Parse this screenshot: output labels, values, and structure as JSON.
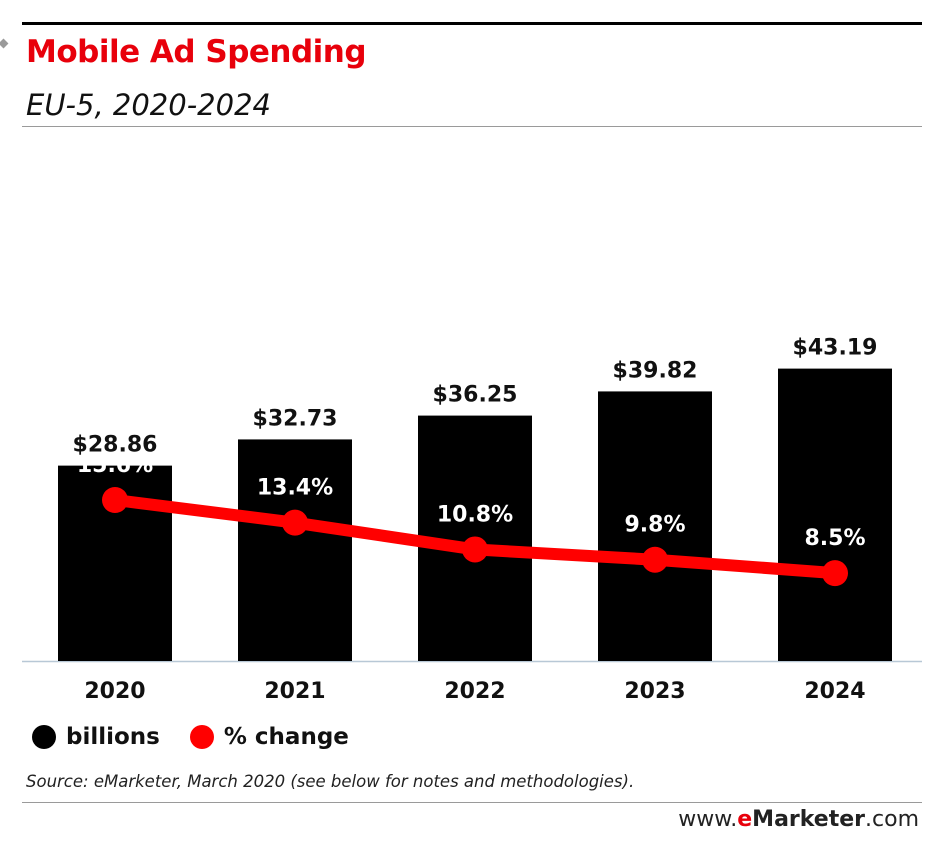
{
  "chart_data": {
    "type": "bar",
    "title": "Mobile Ad Spending",
    "subtitle": "EU-5, 2020-2024",
    "categories": [
      "2020",
      "2021",
      "2022",
      "2023",
      "2024"
    ],
    "series": [
      {
        "name": "billions",
        "type": "bar",
        "values": [
          28.86,
          32.73,
          36.25,
          39.82,
          43.19
        ],
        "labels": [
          "$28.86",
          "$32.73",
          "$36.25",
          "$39.82",
          "$43.19"
        ],
        "color": "#000000"
      },
      {
        "name": "% change",
        "type": "line",
        "values": [
          15.6,
          13.4,
          10.8,
          9.8,
          8.5
        ],
        "labels": [
          "15.6%",
          "13.4%",
          "10.8%",
          "9.8%",
          "8.5%"
        ],
        "color": "#ff0000"
      }
    ],
    "legend_position": "bottom-left",
    "grid": false,
    "source": "Source: eMarketer, March 2020 (see below for notes and methodologies)."
  },
  "brand": {
    "prefix": "www.",
    "accent": "e",
    "name": "Marketer",
    "suffix": ".com"
  }
}
